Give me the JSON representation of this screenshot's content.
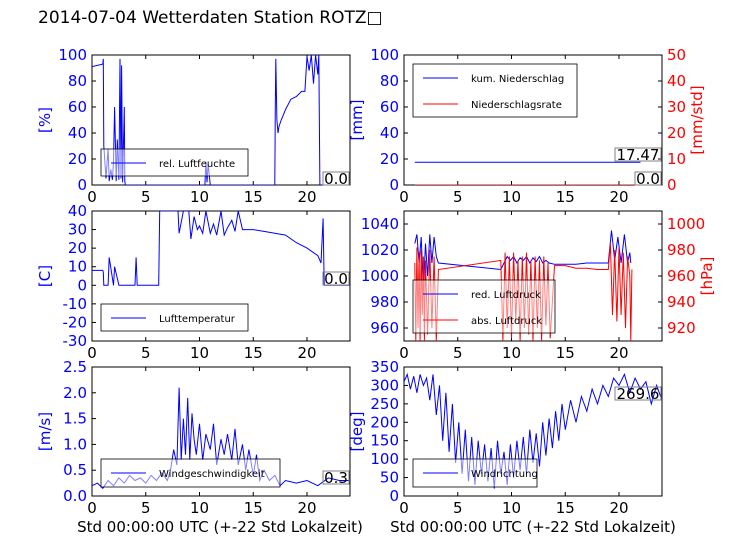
{
  "title": "2014-07-04 Wetterdaten Station ROTZ□",
  "colors": {
    "primary": "#0000ff",
    "secondary": "#ff0000",
    "axis": "#000000",
    "box": "#808080"
  },
  "chart_data": [
    {
      "type": "line",
      "ylabel": "[%]",
      "xlim": [
        0,
        24
      ],
      "ylim": [
        0,
        100
      ],
      "xticks": [
        0,
        5,
        10,
        15,
        20
      ],
      "yticks": [
        0,
        20,
        40,
        60,
        80,
        100
      ],
      "legend": [
        "rel. Luftfeuchte"
      ],
      "current_value": "0.0",
      "series": [
        {
          "name": "rel. Luftfeuchte",
          "color": "#0000ff",
          "x": [
            0,
            1.0,
            1.05,
            1.1,
            1.3,
            1.5,
            1.6,
            1.75,
            1.9,
            2.0,
            2.1,
            2.25,
            2.35,
            2.5,
            2.6,
            2.7,
            2.75,
            2.85,
            3.0,
            3.05,
            3.1,
            3.5,
            10.5,
            10.6,
            10.7,
            10.8,
            11.0,
            17.0,
            17.05,
            17.1,
            17.2,
            17.3,
            17.4,
            17.6,
            18.0,
            18.5,
            19.0,
            19.5,
            19.8,
            20.0,
            20.2,
            20.4,
            20.6,
            20.8,
            21.0,
            21.1,
            21.2,
            21.5,
            24
          ],
          "y": [
            91,
            93,
            97,
            30,
            5,
            28,
            3,
            12,
            4,
            18,
            60,
            3,
            35,
            4,
            97,
            5,
            92,
            2,
            60,
            3,
            0,
            0,
            0,
            18,
            2,
            16,
            0,
            0,
            60,
            97,
            50,
            40,
            45,
            50,
            58,
            66,
            68,
            72,
            72,
            99,
            88,
            100,
            78,
            100,
            85,
            100,
            0,
            0,
            0
          ]
        }
      ]
    },
    {
      "type": "line",
      "ylabel": "[mm]",
      "y2label": "[mm/std]",
      "xlim": [
        0,
        24
      ],
      "ylim": [
        0,
        100
      ],
      "y2lim": [
        0,
        50
      ],
      "xticks": [
        0,
        5,
        10,
        15,
        20
      ],
      "yticks": [
        0,
        20,
        40,
        60,
        80,
        100
      ],
      "y2ticks": [
        0,
        10,
        20,
        30,
        40,
        50
      ],
      "legend": [
        "kum. Niederschlag",
        "Niederschlagsrate"
      ],
      "current_values": [
        "17.47",
        "0.0"
      ],
      "series": [
        {
          "name": "kum. Niederschlag",
          "color": "#0000ff",
          "axis": "left",
          "x": [
            1,
            22
          ],
          "y": [
            17.47,
            17.47
          ]
        },
        {
          "name": "Niederschlagsrate",
          "color": "#ff0000",
          "axis": "right",
          "x": [
            1,
            22
          ],
          "y": [
            0,
            0
          ]
        }
      ]
    },
    {
      "type": "line",
      "ylabel": "[C]",
      "xlim": [
        0,
        24
      ],
      "ylim": [
        -30,
        40
      ],
      "xticks": [
        0,
        5,
        10,
        15,
        20
      ],
      "yticks": [
        -30,
        -20,
        -10,
        0,
        10,
        20,
        30,
        40
      ],
      "legend": [
        "Lufttemperatur"
      ],
      "current_value": "0.0",
      "series": [
        {
          "name": "Lufttemperatur",
          "color": "#0000ff",
          "x": [
            0,
            1.0,
            1.05,
            1.1,
            1.5,
            1.6,
            2.0,
            2.1,
            2.5,
            3.0,
            3.1,
            3.5,
            4.0,
            4.1,
            4.2,
            4.3,
            6.2,
            6.3,
            6.4,
            7.0,
            8.0,
            8.1,
            8.5,
            9.0,
            9.2,
            9.5,
            9.8,
            10.0,
            10.3,
            10.6,
            11.0,
            11.3,
            11.6,
            12.0,
            12.3,
            12.6,
            13.0,
            13.3,
            13.6,
            14.0,
            15.0,
            16.0,
            17.0,
            18.0,
            19.0,
            20.0,
            21.0,
            21.3,
            21.5,
            21.6,
            21.8,
            22.0,
            24
          ],
          "y": [
            8,
            8,
            7,
            0,
            0,
            15,
            0,
            10,
            0,
            0,
            0,
            0,
            0,
            15,
            0,
            0,
            0,
            40,
            40,
            40,
            40,
            28,
            40,
            40,
            25,
            37,
            30,
            32,
            28,
            40,
            28,
            33,
            27,
            40,
            27,
            31,
            35,
            29,
            40,
            30,
            30,
            29,
            28,
            27,
            23,
            20,
            16,
            12,
            36,
            0,
            0,
            0,
            0
          ]
        }
      ]
    },
    {
      "type": "line",
      "ylabel": "[hPa]",
      "xlim": [
        0,
        24
      ],
      "ylim": [
        950,
        1050
      ],
      "y2lim": [
        910,
        1010
      ],
      "xticks": [
        0,
        5,
        10,
        15,
        20
      ],
      "yticks": [
        960,
        980,
        1000,
        1020,
        1040
      ],
      "y2ticks": [
        920,
        940,
        960,
        980,
        1000
      ],
      "legend": [
        "red. Luftdruck",
        "abs. Luftdruck"
      ],
      "series": [
        {
          "name": "red. Luftdruck",
          "color": "#0000ff",
          "axis": "left",
          "x": [
            1.0,
            1.2,
            1.4,
            1.6,
            1.8,
            2.0,
            2.2,
            2.4,
            2.6,
            2.8,
            3.0,
            3.2,
            9.0,
            9.3,
            9.6,
            9.9,
            10.2,
            10.5,
            10.8,
            11.1,
            11.4,
            11.7,
            12.0,
            12.3,
            12.6,
            12.9,
            13.2,
            13.5,
            14.0,
            15.0,
            16.0,
            17.0,
            18.0,
            19.0,
            19.3,
            19.6,
            19.9,
            20.2,
            20.5,
            20.8,
            21.0,
            21.1
          ],
          "y": [
            1025,
            1032,
            1010,
            1030,
            990,
            1025,
            1000,
            1032,
            1010,
            1030,
            1015,
            1010,
            1005,
            1010,
            1015,
            1012,
            1015,
            1010,
            1014,
            1012,
            1015,
            1010,
            1014,
            1011,
            1015,
            1010,
            1012,
            1010,
            1009,
            1009,
            1009,
            1010,
            1010,
            1010,
            1035,
            1012,
            1030,
            1010,
            1032,
            1010,
            1018,
            1010
          ]
        },
        {
          "name": "abs. Luftdruck",
          "color": "#ff0000",
          "axis": "right",
          "x": [
            1.0,
            1.1,
            1.2,
            1.3,
            1.4,
            1.5,
            1.6,
            1.7,
            1.8,
            1.9,
            2.0,
            2.2,
            2.4,
            2.6,
            2.8,
            3.0,
            3.2,
            9.0,
            9.2,
            9.4,
            9.6,
            9.8,
            10.0,
            10.2,
            10.4,
            10.6,
            10.8,
            11.0,
            11.2,
            11.4,
            11.6,
            11.8,
            12.0,
            12.2,
            12.4,
            12.6,
            12.8,
            13.0,
            13.2,
            13.4,
            13.6,
            14.0,
            15.0,
            16.0,
            17.0,
            18.0,
            19.0,
            19.2,
            19.4,
            19.6,
            19.8,
            20.0,
            20.2,
            20.4,
            20.6,
            20.8,
            21.0,
            21.1,
            21.2
          ],
          "y": [
            970,
            910,
            982,
            920,
            978,
            910,
            980,
            930,
            975,
            910,
            972,
            915,
            980,
            920,
            975,
            910,
            965,
            972,
            910,
            978,
            920,
            975,
            912,
            978,
            925,
            972,
            910,
            975,
            920,
            978,
            915,
            972,
            910,
            975,
            920,
            972,
            910,
            975,
            922,
            970,
            912,
            968,
            968,
            966,
            966,
            965,
            965,
            985,
            930,
            980,
            925,
            982,
            930,
            978,
            920,
            975,
            960,
            910,
            965
          ]
        }
      ]
    },
    {
      "type": "line",
      "ylabel": "[m/s]",
      "xlim": [
        0,
        24
      ],
      "ylim": [
        0,
        2.5
      ],
      "xticks": [
        0,
        5,
        10,
        15,
        20
      ],
      "yticks": [
        0.0,
        0.5,
        1.0,
        1.5,
        2.0,
        2.5
      ],
      "legend": [
        "Windgeschwindigkeit"
      ],
      "current_value": "0.3",
      "series": [
        {
          "name": "Windgeschwindigkeit",
          "color": "#0000ff",
          "x": [
            0,
            0.5,
            1.0,
            1.5,
            2.0,
            2.5,
            3.0,
            3.5,
            4.0,
            4.5,
            5.0,
            5.5,
            6.0,
            6.5,
            7.0,
            7.3,
            7.6,
            7.9,
            8.1,
            8.3,
            8.5,
            8.7,
            8.9,
            9.1,
            9.3,
            9.5,
            9.7,
            10.0,
            10.3,
            10.6,
            11.0,
            11.3,
            11.6,
            12.0,
            12.3,
            12.6,
            13.0,
            13.3,
            13.6,
            14.0,
            14.3,
            14.6,
            15.0,
            15.3,
            15.6,
            16.0,
            16.5,
            17.0,
            17.5,
            18.0,
            19.0,
            20.0,
            21.0,
            22.0,
            23.0,
            24.0
          ],
          "y": [
            0.2,
            0.25,
            0.15,
            0.3,
            0.2,
            0.35,
            0.25,
            0.4,
            0.3,
            0.35,
            0.25,
            0.4,
            0.3,
            0.45,
            0.3,
            0.5,
            0.9,
            0.6,
            2.1,
            0.7,
            1.5,
            0.8,
            1.9,
            0.7,
            1.6,
            1.1,
            0.8,
            1.4,
            0.7,
            1.2,
            0.9,
            1.4,
            0.6,
            1.1,
            0.8,
            1.2,
            0.7,
            1.3,
            0.6,
            1.0,
            0.5,
            0.9,
            0.4,
            0.8,
            0.3,
            0.5,
            0.3,
            0.4,
            0.2,
            0.3,
            0.25,
            0.3,
            0.2,
            0.35,
            0.3,
            0.3
          ]
        }
      ]
    },
    {
      "type": "line",
      "ylabel": "[deg]",
      "xlim": [
        0,
        24
      ],
      "ylim": [
        0,
        350
      ],
      "xticks": [
        0,
        5,
        10,
        15,
        20
      ],
      "yticks": [
        0,
        50,
        100,
        150,
        200,
        250,
        300,
        350
      ],
      "legend": [
        "Windrichtung"
      ],
      "current_value": "269.6",
      "series": [
        {
          "name": "Windrichtung",
          "color": "#0000ff",
          "x": [
            0,
            0.3,
            0.6,
            0.9,
            1.2,
            1.5,
            1.8,
            2.1,
            2.4,
            2.7,
            3.0,
            3.3,
            3.6,
            3.9,
            4.2,
            4.5,
            4.8,
            5.1,
            5.4,
            5.7,
            6.0,
            6.3,
            6.6,
            6.9,
            7.2,
            7.5,
            7.8,
            8.1,
            8.4,
            8.7,
            9.0,
            9.3,
            9.6,
            9.9,
            10.2,
            10.5,
            10.8,
            11.1,
            11.4,
            11.7,
            12.0,
            12.3,
            12.6,
            12.9,
            13.2,
            13.5,
            13.8,
            14.1,
            14.4,
            14.7,
            15.0,
            15.5,
            16.0,
            16.5,
            17.0,
            17.5,
            18.0,
            18.5,
            19.0,
            19.5,
            20.0,
            20.5,
            21.0,
            21.5,
            22.0,
            22.5,
            23.0,
            23.5,
            24.0
          ],
          "y": [
            310,
            330,
            290,
            325,
            280,
            330,
            300,
            320,
            260,
            330,
            220,
            300,
            150,
            280,
            120,
            250,
            90,
            200,
            60,
            180,
            40,
            160,
            30,
            150,
            60,
            140,
            40,
            130,
            20,
            150,
            60,
            120,
            30,
            140,
            50,
            150,
            70,
            160,
            60,
            180,
            90,
            170,
            80,
            200,
            110,
            210,
            130,
            230,
            150,
            250,
            180,
            260,
            200,
            270,
            230,
            290,
            250,
            300,
            270,
            320,
            300,
            330,
            280,
            320,
            290,
            310,
            250,
            300,
            260
          ]
        }
      ]
    }
  ],
  "xlabel": "Std 00:00:00 UTC (+-22 Std Lokalzeit)"
}
